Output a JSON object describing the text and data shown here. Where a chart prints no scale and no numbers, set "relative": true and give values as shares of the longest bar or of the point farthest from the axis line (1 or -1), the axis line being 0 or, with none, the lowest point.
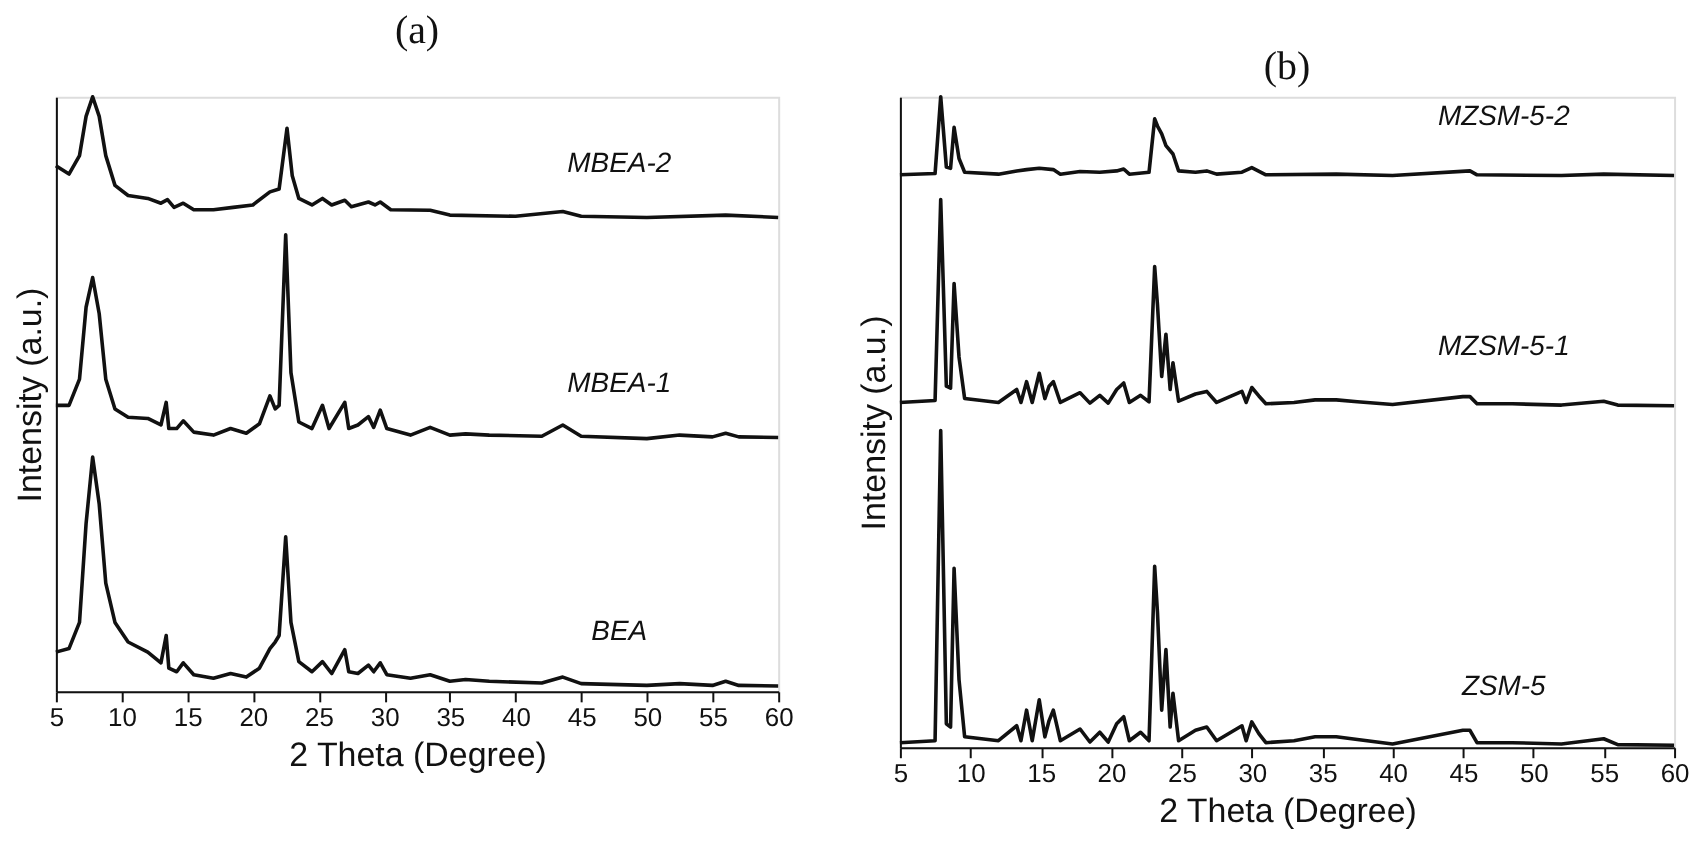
{
  "chart_data": [
    {
      "type": "line",
      "title": "(a)",
      "xlabel": "2 Theta (Degree)",
      "ylabel": "Intensity (a.u.)",
      "relative": true,
      "xlim": [
        5,
        60
      ],
      "xticks": [
        5,
        10,
        15,
        20,
        25,
        30,
        35,
        40,
        45,
        50,
        55,
        60
      ],
      "tick_labels": "x",
      "grid": false,
      "marker": "none",
      "line_style": "solid",
      "series": [
        {
          "name": "BEA",
          "color": "#111111",
          "x": [
            5,
            6,
            6.8,
            7.3,
            7.8,
            8.3,
            8.8,
            9.5,
            10.5,
            12,
            13,
            13.4,
            13.6,
            14.2,
            14.7,
            15.5,
            17,
            18.3,
            19.5,
            20.5,
            21.3,
            21.7,
            22.0,
            22.5,
            22.9,
            23.5,
            24.5,
            25.3,
            26,
            27.0,
            27.3,
            28,
            28.8,
            29.2,
            29.7,
            30.2,
            32,
            33.5,
            35,
            36.2,
            38,
            42,
            43.6,
            45,
            50,
            52.5,
            55,
            56,
            57,
            60
          ],
          "values": [
            0.066,
            0.072,
            0.116,
            0.282,
            0.394,
            0.315,
            0.182,
            0.116,
            0.083,
            0.066,
            0.048,
            0.094,
            0.039,
            0.033,
            0.048,
            0.028,
            0.022,
            0.03,
            0.024,
            0.039,
            0.072,
            0.083,
            0.094,
            0.26,
            0.116,
            0.05,
            0.033,
            0.05,
            0.03,
            0.07,
            0.033,
            0.03,
            0.044,
            0.033,
            0.048,
            0.028,
            0.022,
            0.028,
            0.017,
            0.02,
            0.017,
            0.014,
            0.024,
            0.013,
            0.01,
            0.013,
            0.01,
            0.017,
            0.01,
            0.009
          ]
        },
        {
          "name": "MBEA-1",
          "color": "#111111",
          "x": [
            5,
            6,
            6.8,
            7.3,
            7.8,
            8.3,
            8.8,
            9.5,
            10.5,
            12,
            13,
            13.4,
            13.6,
            14.2,
            14.7,
            15.5,
            17,
            18.3,
            19.5,
            20.5,
            21.3,
            21.7,
            22.0,
            22.5,
            22.9,
            23.5,
            24.5,
            25.3,
            25.8,
            27.0,
            27.3,
            28,
            28.8,
            29.2,
            29.7,
            30.2,
            32,
            33.5,
            35,
            36.2,
            38,
            42,
            43.6,
            45,
            50,
            52.5,
            55,
            56,
            57,
            60
          ],
          "values": [
            0.481,
            0.481,
            0.525,
            0.646,
            0.696,
            0.635,
            0.525,
            0.475,
            0.461,
            0.459,
            0.448,
            0.486,
            0.442,
            0.442,
            0.455,
            0.436,
            0.431,
            0.442,
            0.434,
            0.45,
            0.497,
            0.475,
            0.481,
            0.768,
            0.536,
            0.453,
            0.442,
            0.481,
            0.442,
            0.486,
            0.442,
            0.448,
            0.462,
            0.444,
            0.473,
            0.442,
            0.431,
            0.444,
            0.431,
            0.433,
            0.431,
            0.429,
            0.448,
            0.429,
            0.425,
            0.431,
            0.428,
            0.434,
            0.428,
            0.427
          ]
        },
        {
          "name": "MBEA-2",
          "color": "#111111",
          "x": [
            5,
            6,
            6.8,
            7.3,
            7.8,
            8.3,
            8.8,
            9.5,
            10.5,
            12,
            13,
            13.5,
            14,
            14.7,
            15.5,
            17,
            18.5,
            20,
            21.3,
            22.0,
            22.6,
            23.0,
            23.5,
            24.5,
            25.3,
            26,
            27,
            27.5,
            28.8,
            29.3,
            29.7,
            30.5,
            33.5,
            35,
            40,
            43.6,
            45,
            50,
            56,
            60
          ],
          "values": [
            0.884,
            0.87,
            0.901,
            0.967,
            1.0,
            0.967,
            0.901,
            0.851,
            0.834,
            0.829,
            0.821,
            0.827,
            0.814,
            0.821,
            0.81,
            0.81,
            0.814,
            0.818,
            0.84,
            0.845,
            0.947,
            0.867,
            0.829,
            0.818,
            0.829,
            0.818,
            0.826,
            0.815,
            0.823,
            0.818,
            0.823,
            0.81,
            0.809,
            0.801,
            0.799,
            0.807,
            0.799,
            0.797,
            0.801,
            0.797
          ]
        }
      ]
    },
    {
      "type": "line",
      "title": "(b)",
      "xlabel": "2 Theta (Degree)",
      "ylabel": "Intensity (a.u.)",
      "relative": true,
      "xlim": [
        5,
        60
      ],
      "xticks": [
        5,
        10,
        15,
        20,
        25,
        30,
        35,
        40,
        45,
        50,
        55,
        60
      ],
      "tick_labels": "x",
      "grid": false,
      "marker": "none",
      "line_style": "solid",
      "series": [
        {
          "name": "ZSM-5",
          "color": "#111111",
          "x": [
            5,
            7.5,
            7.9,
            8.3,
            8.6,
            8.85,
            9.2,
            9.6,
            12,
            13.3,
            13.6,
            14,
            14.4,
            14.9,
            15.3,
            15.6,
            15.9,
            16.4,
            17.8,
            18.5,
            19.2,
            19.8,
            20.4,
            20.9,
            21.3,
            22.1,
            22.7,
            23.1,
            23.3,
            23.6,
            23.9,
            24.2,
            24.4,
            24.8,
            26,
            26.8,
            27.5,
            29.3,
            29.6,
            30,
            30.5,
            31,
            33,
            34.5,
            36,
            37.5,
            40,
            45,
            45.5,
            46,
            48.5,
            52,
            55,
            56,
            60
          ],
          "values": [
            0.007,
            0.01,
            0.487,
            0.036,
            0.031,
            0.275,
            0.104,
            0.016,
            0.01,
            0.033,
            0.01,
            0.057,
            0.01,
            0.073,
            0.016,
            0.041,
            0.057,
            0.01,
            0.028,
            0.008,
            0.023,
            0.008,
            0.036,
            0.047,
            0.01,
            0.023,
            0.01,
            0.278,
            0.207,
            0.057,
            0.15,
            0.031,
            0.083,
            0.01,
            0.026,
            0.031,
            0.01,
            0.033,
            0.01,
            0.039,
            0.021,
            0.007,
            0.01,
            0.016,
            0.016,
            0.012,
            0.005,
            0.026,
            0.026,
            0.007,
            0.007,
            0.005,
            0.013,
            0.004,
            0.003
          ]
        },
        {
          "name": "MZSM-5-1",
          "color": "#111111",
          "x": [
            5,
            7.5,
            7.9,
            8.3,
            8.6,
            8.85,
            9.2,
            9.6,
            12,
            13.3,
            13.6,
            14,
            14.4,
            14.9,
            15.3,
            15.6,
            15.9,
            16.4,
            17.8,
            18.5,
            19.2,
            19.8,
            20.4,
            20.9,
            21.3,
            22.1,
            22.7,
            23.1,
            23.3,
            23.6,
            23.9,
            24.2,
            24.4,
            24.8,
            26,
            26.8,
            27.5,
            29.3,
            29.6,
            30,
            30.5,
            31,
            33,
            34.5,
            36,
            37.5,
            40,
            45,
            45.5,
            46,
            48.5,
            52,
            55,
            56,
            60
          ],
          "values": [
            0.53,
            0.533,
            0.842,
            0.555,
            0.552,
            0.713,
            0.6,
            0.536,
            0.53,
            0.55,
            0.53,
            0.562,
            0.53,
            0.575,
            0.536,
            0.555,
            0.562,
            0.53,
            0.545,
            0.529,
            0.541,
            0.529,
            0.55,
            0.56,
            0.53,
            0.541,
            0.531,
            0.739,
            0.68,
            0.57,
            0.635,
            0.55,
            0.591,
            0.532,
            0.543,
            0.547,
            0.53,
            0.547,
            0.53,
            0.553,
            0.54,
            0.528,
            0.53,
            0.534,
            0.534,
            0.531,
            0.527,
            0.539,
            0.539,
            0.528,
            0.528,
            0.526,
            0.532,
            0.526,
            0.525
          ]
        },
        {
          "name": "MZSM-5-2",
          "color": "#111111",
          "x": [
            5,
            7.5,
            7.9,
            8.3,
            8.6,
            8.85,
            9.2,
            9.6,
            12,
            13.3,
            14,
            14.9,
            15.9,
            16.4,
            17.8,
            19.2,
            20.4,
            20.9,
            21.3,
            22.7,
            23.1,
            23.3,
            23.6,
            23.9,
            24.4,
            24.8,
            26,
            26.8,
            27.5,
            29.3,
            30,
            31,
            36,
            40,
            45.5,
            46,
            52,
            55,
            60
          ],
          "values": [
            0.88,
            0.882,
            1.0,
            0.892,
            0.89,
            0.953,
            0.905,
            0.884,
            0.881,
            0.886,
            0.888,
            0.89,
            0.888,
            0.881,
            0.885,
            0.884,
            0.886,
            0.889,
            0.881,
            0.884,
            0.966,
            0.955,
            0.943,
            0.925,
            0.912,
            0.886,
            0.884,
            0.886,
            0.881,
            0.884,
            0.891,
            0.88,
            0.881,
            0.879,
            0.886,
            0.88,
            0.879,
            0.881,
            0.879
          ]
        }
      ]
    }
  ]
}
